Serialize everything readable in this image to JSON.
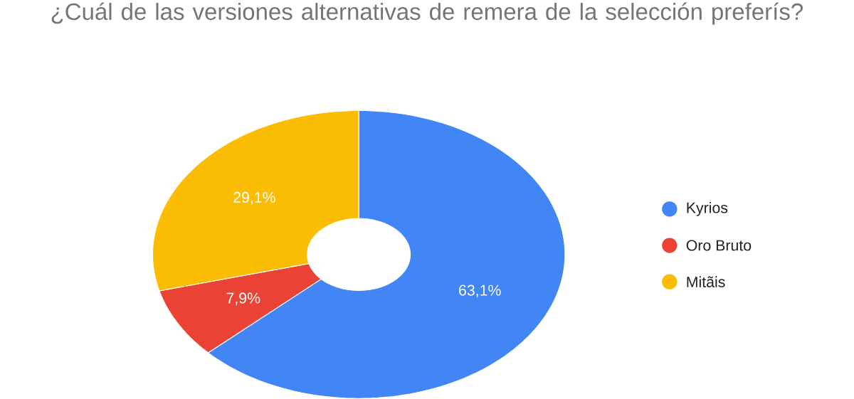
{
  "chart_data": {
    "type": "donut",
    "title": "¿Cuál de las versiones alternativas de remera de la selección preferís?",
    "categories": [
      "Kyrios",
      "Oro Bruto",
      "Mitãis"
    ],
    "values": [
      63.1,
      7.9,
      29.1
    ],
    "colors": [
      "#4285f4",
      "#ea4335",
      "#fbbc04"
    ],
    "value_labels": [
      "63,1%",
      "7,9%",
      "29,1%"
    ],
    "legend": "right"
  }
}
